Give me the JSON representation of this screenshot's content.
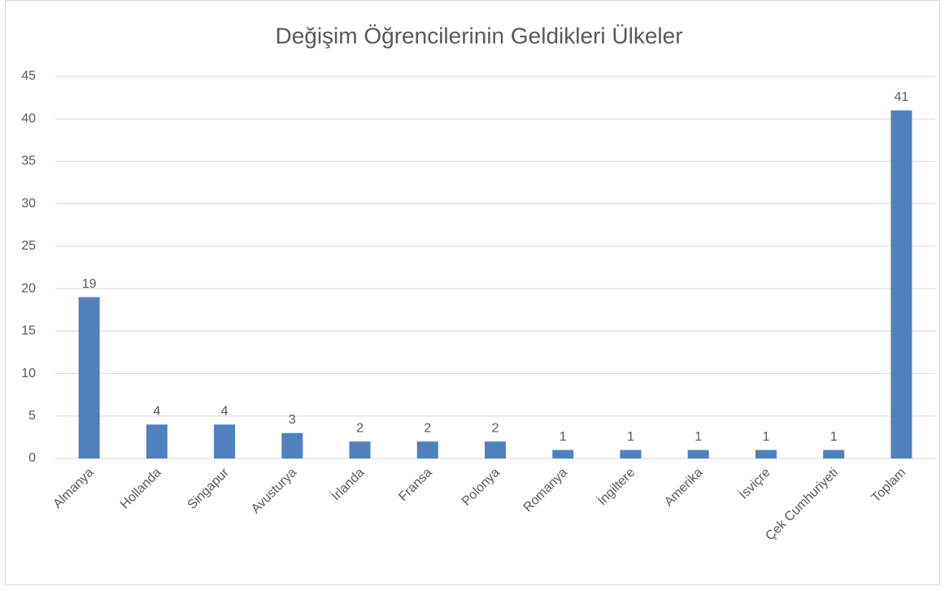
{
  "chart_data": {
    "type": "bar",
    "title": "Değişim Öğrencilerinin Geldikleri Ülkeler",
    "categories": [
      "Almanya",
      "Hollanda",
      "Singapur",
      "Avusturya",
      "İrlanda",
      "Fransa",
      "Polonya",
      "Romanya",
      "İngiltere",
      "Amerika",
      "İsviçre",
      "Çek Cumhuriyeti",
      "Toplam"
    ],
    "values": [
      19,
      4,
      4,
      3,
      2,
      2,
      2,
      1,
      1,
      1,
      1,
      1,
      41
    ],
    "color": "#4f81bd",
    "ylim": [
      0,
      45
    ],
    "yticks": [
      0,
      5,
      10,
      15,
      20,
      25,
      30,
      35,
      40,
      45
    ],
    "grid": true
  }
}
